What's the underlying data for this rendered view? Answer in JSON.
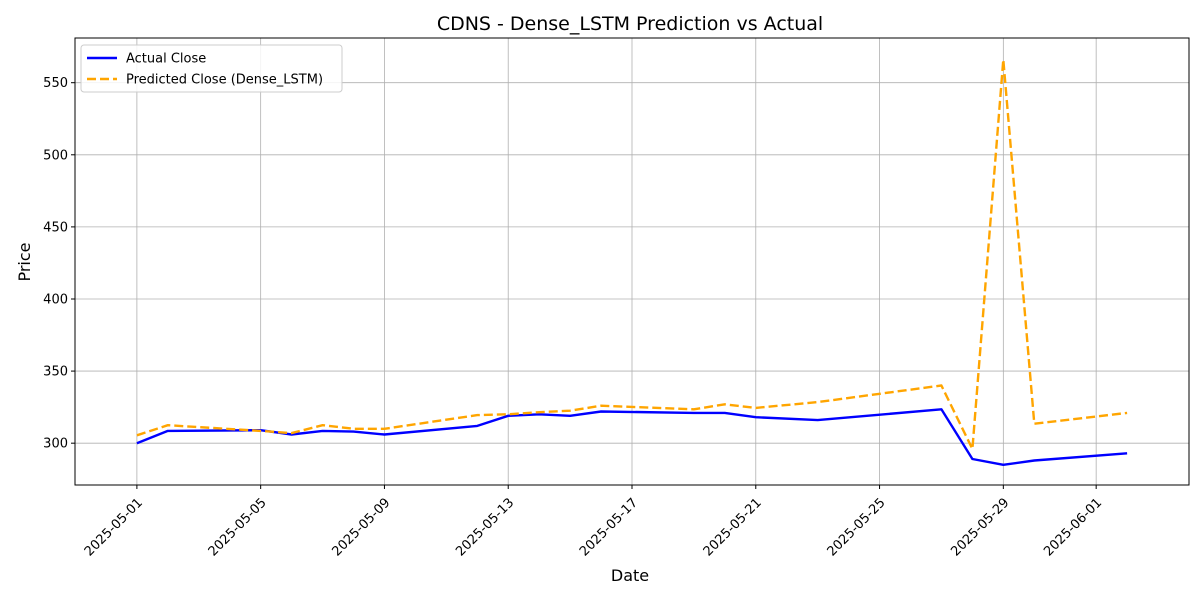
{
  "chart_data": {
    "type": "line",
    "title": "CDNS - Dense_LSTM Prediction vs Actual",
    "xlabel": "Date",
    "ylabel": "Price",
    "ylim": [
      271,
      581
    ],
    "xlim": [
      "2025-04-29",
      "2025-06-04"
    ],
    "grid": true,
    "legend_position": "top-left",
    "x_ticks": [
      "2025-05-01",
      "2025-05-05",
      "2025-05-09",
      "2025-05-13",
      "2025-05-17",
      "2025-05-21",
      "2025-05-25",
      "2025-05-29",
      "2025-06-01"
    ],
    "y_ticks": [
      300,
      350,
      400,
      450,
      500,
      550
    ],
    "x": [
      "2025-05-01",
      "2025-05-02",
      "2025-05-05",
      "2025-05-06",
      "2025-05-07",
      "2025-05-08",
      "2025-05-09",
      "2025-05-12",
      "2025-05-13",
      "2025-05-14",
      "2025-05-15",
      "2025-05-16",
      "2025-05-19",
      "2025-05-20",
      "2025-05-21",
      "2025-05-23",
      "2025-05-27",
      "2025-05-28",
      "2025-05-29",
      "2025-05-30",
      "2025-06-02"
    ],
    "series": [
      {
        "name": "Actual Close",
        "color": "#0000ff",
        "style": "solid",
        "values": [
          300,
          308.5,
          309,
          306,
          308.5,
          308,
          306,
          312,
          319,
          320,
          319,
          322,
          321,
          321,
          318,
          316,
          323.5,
          289,
          285,
          288,
          293
        ]
      },
      {
        "name": "Predicted Close (Dense_LSTM)",
        "color": "#ffa500",
        "style": "dashed",
        "values": [
          305.5,
          312.5,
          308.5,
          307,
          312.5,
          310,
          310,
          319.5,
          320,
          321.5,
          322.5,
          326,
          323.5,
          327,
          324.5,
          328.5,
          340,
          296,
          566,
          313.5,
          321
        ]
      }
    ]
  }
}
